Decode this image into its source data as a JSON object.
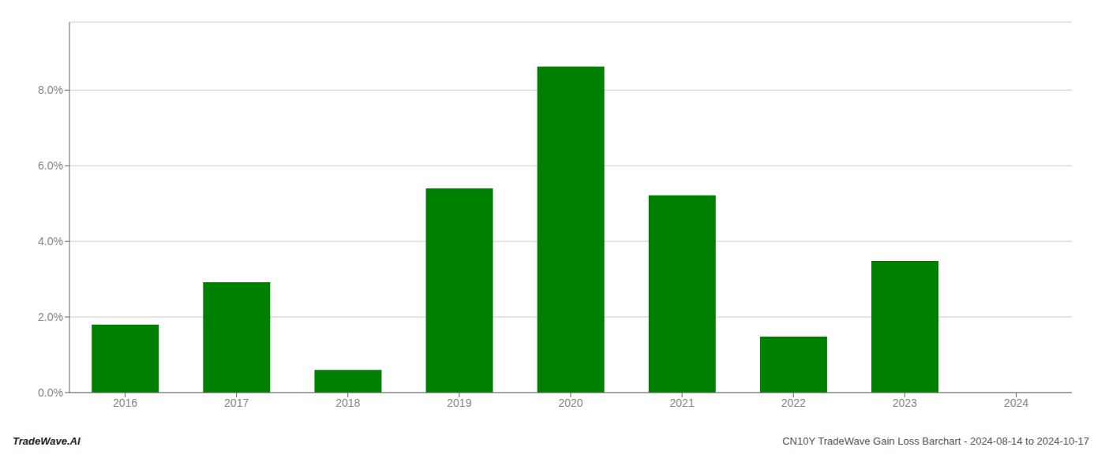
{
  "chart_data": {
    "type": "bar",
    "categories": [
      "2016",
      "2017",
      "2018",
      "2019",
      "2020",
      "2021",
      "2022",
      "2023",
      "2024"
    ],
    "values": [
      1.8,
      2.92,
      0.6,
      5.4,
      8.62,
      5.22,
      1.48,
      3.48,
      0.0
    ],
    "color": "#008000",
    "ylim": [
      0,
      9.8
    ],
    "yticks": [
      {
        "value": 0.0,
        "label": "0.0%"
      },
      {
        "value": 2.0,
        "label": "2.0%"
      },
      {
        "value": 4.0,
        "label": "4.0%"
      },
      {
        "value": 6.0,
        "label": "6.0%"
      },
      {
        "value": 8.0,
        "label": "8.0%"
      }
    ],
    "grid": true,
    "annotations": [
      "TradeWave.AI",
      "CN10Y TradeWave Gain Loss Barchart - 2024-08-14 to 2024-10-17"
    ]
  }
}
